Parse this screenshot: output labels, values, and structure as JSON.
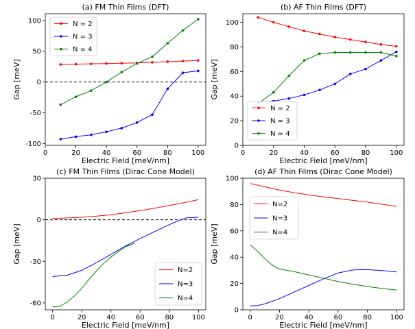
{
  "chart_data": [
    {
      "type": "line",
      "title": "(a) FM Thin Films (DFT)",
      "xlabel": "Electric Field [meV/nm]",
      "ylabel": "Gap [meV]",
      "xlim": [
        0,
        105
      ],
      "ylim": [
        -103,
        111
      ],
      "xticks": [
        0,
        20,
        40,
        60,
        80,
        100
      ],
      "yticks": [
        -100,
        -50,
        0,
        50,
        100
      ],
      "reference_line": 0,
      "legend": "top-left",
      "markers": true,
      "series": [
        {
          "name": "N = 2",
          "color": "#ff0000",
          "x": [
            10,
            20,
            30,
            40,
            50,
            60,
            70,
            80,
            90,
            100
          ],
          "y": [
            28.5,
            29,
            29.5,
            30,
            30.5,
            31,
            32,
            33,
            34,
            35
          ]
        },
        {
          "name": "N = 3",
          "color": "#0000ff",
          "x": [
            10,
            20,
            30,
            40,
            50,
            60,
            70,
            80,
            90,
            100
          ],
          "y": [
            -93,
            -89,
            -86,
            -81,
            -75,
            -66,
            -53,
            -11,
            15,
            18
          ]
        },
        {
          "name": "N = 4",
          "color": "#008000",
          "x": [
            10,
            20,
            30,
            40,
            50,
            60,
            70,
            80,
            90,
            100
          ],
          "y": [
            -37,
            -24,
            -14,
            0,
            16,
            30,
            41,
            63,
            84,
            102
          ]
        }
      ]
    },
    {
      "type": "line",
      "title": "(b) AF Thin Films (DFT)",
      "xlabel": "Electric Field [meV/nm]",
      "ylabel": "Gap [meV]",
      "xlim": [
        0,
        105
      ],
      "ylim": [
        0,
        107
      ],
      "xticks": [
        0,
        20,
        40,
        60,
        80,
        100
      ],
      "yticks": [
        0,
        20,
        40,
        60,
        80,
        100
      ],
      "legend": "bottom-left",
      "markers": true,
      "series": [
        {
          "name": "N = 2",
          "color": "#ff0000",
          "x": [
            10,
            20,
            30,
            40,
            50,
            60,
            70,
            80,
            90,
            100
          ],
          "y": [
            104,
            100,
            96.5,
            93,
            90.5,
            88,
            86,
            84,
            82,
            80.5
          ]
        },
        {
          "name": "N = 3",
          "color": "#0000ff",
          "x": [
            10,
            20,
            30,
            40,
            50,
            60,
            70,
            80,
            90,
            100
          ],
          "y": [
            35,
            36,
            38,
            41,
            45,
            50,
            58,
            62,
            69,
            76
          ]
        },
        {
          "name": "N = 4",
          "color": "#008000",
          "x": [
            10,
            20,
            30,
            40,
            50,
            60,
            70,
            80,
            90,
            100
          ],
          "y": [
            34,
            43,
            56.5,
            69,
            74.5,
            75.5,
            75.5,
            75.5,
            75.5,
            72.5
          ]
        }
      ]
    },
    {
      "type": "line",
      "title": "(c) FM Thin Films (Dirac Cone Model)",
      "xlabel": "Electric Field [meV/nm]",
      "ylabel": "Gap [meV]",
      "xlim": [
        -5,
        105
      ],
      "ylim": [
        -65,
        30
      ],
      "xticks": [
        0,
        20,
        40,
        60,
        80,
        100
      ],
      "yticks": [
        -60,
        -30,
        0,
        30
      ],
      "reference_line": 0,
      "legend": "bottom-right",
      "markers": false,
      "series": [
        {
          "name": "N=2",
          "color": "#ff0000",
          "x": [
            0,
            10,
            20,
            30,
            40,
            50,
            60,
            70,
            80,
            90,
            100
          ],
          "y": [
            1,
            1.3,
            1.8,
            2.6,
            3.7,
            5,
            6.6,
            8.4,
            10.3,
            12.3,
            14.5
          ]
        },
        {
          "name": "N=3",
          "color": "#0000ff",
          "x": [
            0,
            10,
            20,
            30,
            40,
            50,
            60,
            70,
            80,
            88,
            92,
            96,
            100
          ],
          "y": [
            -41,
            -40,
            -36.5,
            -31,
            -25,
            -19,
            -13.5,
            -8.5,
            -3.5,
            0,
            1.5,
            1.5,
            2
          ]
        },
        {
          "name": "N=4",
          "color": "#008000",
          "x": [
            0,
            5,
            10,
            15,
            20,
            25,
            30,
            35,
            40,
            45,
            50,
            56
          ],
          "y": [
            -63,
            -62.5,
            -59.5,
            -55,
            -49.5,
            -43,
            -37,
            -31.5,
            -27,
            -23,
            -19.5,
            -17
          ]
        }
      ]
    },
    {
      "type": "line",
      "title": "(d) AF Thin Films (Dirac Cone Model)",
      "xlabel": "Electric Field [meV/nm]",
      "ylabel": "Gap [meV]",
      "xlim": [
        -5,
        105
      ],
      "ylim": [
        0,
        100
      ],
      "xticks": [
        0,
        20,
        40,
        60,
        80,
        100
      ],
      "yticks": [
        0,
        20,
        40,
        60,
        80,
        100
      ],
      "legend": "upper-left",
      "markers": false,
      "series": [
        {
          "name": "N=2",
          "color": "#ff0000",
          "x": [
            0,
            10,
            20,
            30,
            40,
            50,
            60,
            70,
            80,
            90,
            100
          ],
          "y": [
            96,
            93.5,
            91,
            89,
            87.3,
            85.8,
            84.5,
            83.2,
            81.8,
            80.2,
            78.5
          ]
        },
        {
          "name": "N=3",
          "color": "#0000ff",
          "x": [
            0,
            5,
            10,
            20,
            30,
            40,
            50,
            60,
            70,
            75,
            80,
            90,
            100
          ],
          "y": [
            3,
            3.3,
            4.5,
            8.5,
            13.5,
            18.5,
            23.5,
            28,
            30.2,
            30.6,
            30.5,
            29.8,
            28.8
          ]
        },
        {
          "name": "N=4",
          "color": "#008000",
          "x": [
            0,
            5,
            10,
            15,
            20,
            25,
            30,
            40,
            50,
            60,
            70,
            80,
            90,
            100
          ],
          "y": [
            49.5,
            44.5,
            39,
            34,
            31,
            30,
            29,
            26.5,
            24,
            21.5,
            19.5,
            17.7,
            16.2,
            15
          ]
        }
      ]
    }
  ]
}
